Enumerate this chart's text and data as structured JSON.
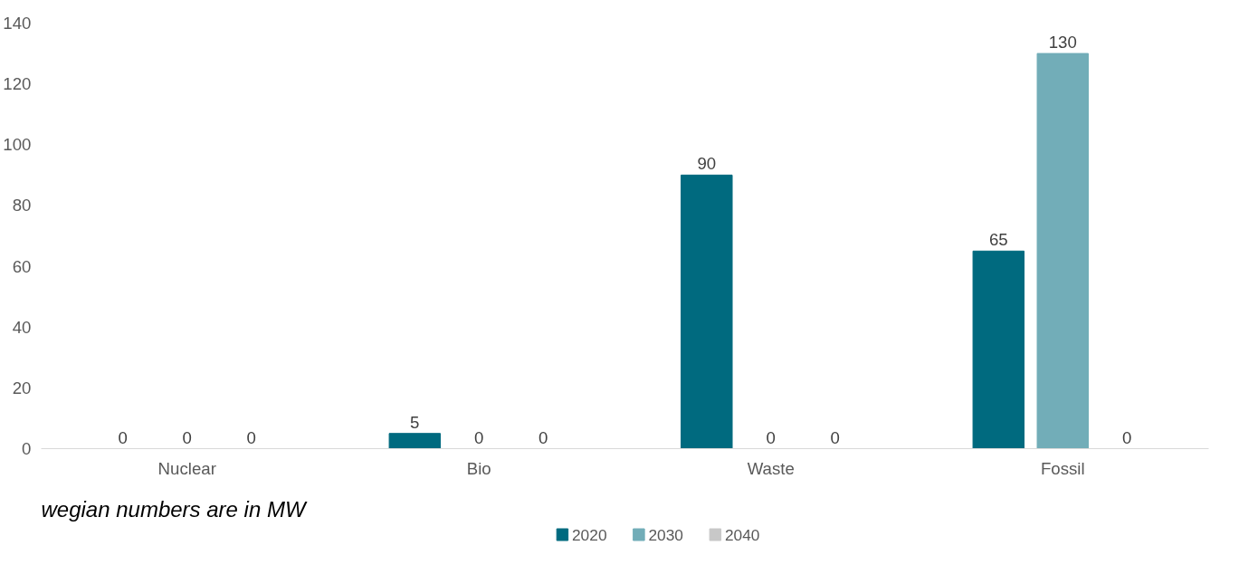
{
  "chart_data": {
    "type": "bar",
    "categories": [
      "Nuclear",
      "Bio",
      "Waste",
      "Fossil"
    ],
    "series": [
      {
        "name": "2020",
        "color": "#006a7f",
        "values": [
          0,
          5,
          90,
          65
        ]
      },
      {
        "name": "2030",
        "color": "#72adb8",
        "values": [
          0,
          0,
          0,
          130
        ]
      },
      {
        "name": "2040",
        "color": "#c8c8c8",
        "values": [
          0,
          0,
          0,
          0
        ]
      }
    ],
    "ylim": [
      0,
      140
    ],
    "yticks": [
      0,
      20,
      40,
      60,
      80,
      100,
      120,
      140
    ],
    "grid": false,
    "legend": "bottom",
    "data_labels": true,
    "annotations": [
      "wegian numbers are in MW"
    ]
  }
}
